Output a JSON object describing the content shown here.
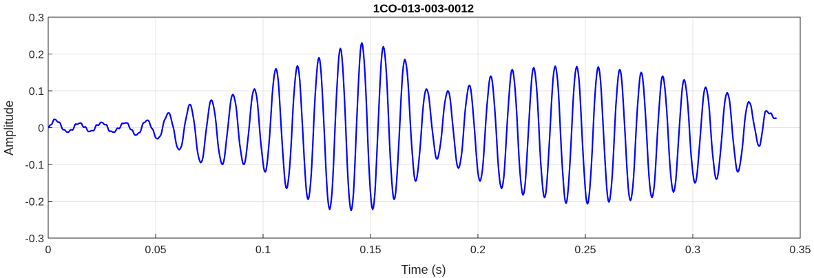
{
  "chart_data": {
    "type": "line",
    "title": "1CO-013-003-0012",
    "xlabel": "Time (s)",
    "ylabel": "Amplitude",
    "xlim": [
      0,
      0.35
    ],
    "ylim": [
      -0.3,
      0.3
    ],
    "grid": true,
    "x_ticks": [
      "0",
      "0.05",
      "0.1",
      "0.15",
      "0.2",
      "0.25",
      "0.3",
      "0.35"
    ],
    "y_ticks": [
      "0.3",
      "0.2",
      "0.1",
      "0",
      "-0.1",
      "-0.2",
      "-0.3"
    ],
    "line_color": "#0000ff",
    "series": [
      {
        "name": "",
        "description": "oscillating waveform",
        "x_start": 0,
        "x_end": 0.339,
        "peaks": [
          {
            "x": 0.003,
            "y": 0.022
          },
          {
            "x": 0.0145,
            "y": 0.012
          },
          {
            "x": 0.025,
            "y": 0.014
          },
          {
            "x": 0.036,
            "y": 0.013
          },
          {
            "x": 0.046,
            "y": 0.02
          },
          {
            "x": 0.056,
            "y": 0.04
          },
          {
            "x": 0.066,
            "y": 0.063
          },
          {
            "x": 0.076,
            "y": 0.075
          },
          {
            "x": 0.086,
            "y": 0.09
          },
          {
            "x": 0.096,
            "y": 0.105
          },
          {
            "x": 0.106,
            "y": 0.16
          },
          {
            "x": 0.116,
            "y": 0.168
          },
          {
            "x": 0.126,
            "y": 0.19
          },
          {
            "x": 0.136,
            "y": 0.215
          },
          {
            "x": 0.146,
            "y": 0.23
          },
          {
            "x": 0.156,
            "y": 0.22
          },
          {
            "x": 0.166,
            "y": 0.185
          },
          {
            "x": 0.176,
            "y": 0.105
          },
          {
            "x": 0.186,
            "y": 0.1
          },
          {
            "x": 0.196,
            "y": 0.115
          },
          {
            "x": 0.206,
            "y": 0.14
          },
          {
            "x": 0.216,
            "y": 0.158
          },
          {
            "x": 0.226,
            "y": 0.163
          },
          {
            "x": 0.236,
            "y": 0.167
          },
          {
            "x": 0.246,
            "y": 0.166
          },
          {
            "x": 0.256,
            "y": 0.165
          },
          {
            "x": 0.266,
            "y": 0.158
          },
          {
            "x": 0.276,
            "y": 0.15
          },
          {
            "x": 0.286,
            "y": 0.14
          },
          {
            "x": 0.296,
            "y": 0.13
          },
          {
            "x": 0.306,
            "y": 0.11
          },
          {
            "x": 0.316,
            "y": 0.095
          },
          {
            "x": 0.326,
            "y": 0.07
          },
          {
            "x": 0.334,
            "y": 0.045
          }
        ],
        "troughs": [
          {
            "x": 0.009,
            "y": -0.012
          },
          {
            "x": 0.0195,
            "y": -0.01
          },
          {
            "x": 0.03,
            "y": -0.012
          },
          {
            "x": 0.041,
            "y": -0.02
          },
          {
            "x": 0.051,
            "y": -0.03
          },
          {
            "x": 0.061,
            "y": -0.06
          },
          {
            "x": 0.071,
            "y": -0.095
          },
          {
            "x": 0.081,
            "y": -0.1
          },
          {
            "x": 0.091,
            "y": -0.1
          },
          {
            "x": 0.101,
            "y": -0.12
          },
          {
            "x": 0.111,
            "y": -0.165
          },
          {
            "x": 0.121,
            "y": -0.195
          },
          {
            "x": 0.131,
            "y": -0.222
          },
          {
            "x": 0.141,
            "y": -0.225
          },
          {
            "x": 0.151,
            "y": -0.222
          },
          {
            "x": 0.161,
            "y": -0.195
          },
          {
            "x": 0.171,
            "y": -0.145
          },
          {
            "x": 0.181,
            "y": -0.085
          },
          {
            "x": 0.191,
            "y": -0.11
          },
          {
            "x": 0.201,
            "y": -0.145
          },
          {
            "x": 0.211,
            "y": -0.165
          },
          {
            "x": 0.221,
            "y": -0.183
          },
          {
            "x": 0.231,
            "y": -0.19
          },
          {
            "x": 0.241,
            "y": -0.205
          },
          {
            "x": 0.251,
            "y": -0.207
          },
          {
            "x": 0.261,
            "y": -0.202
          },
          {
            "x": 0.271,
            "y": -0.198
          },
          {
            "x": 0.281,
            "y": -0.19
          },
          {
            "x": 0.291,
            "y": -0.175
          },
          {
            "x": 0.301,
            "y": -0.15
          },
          {
            "x": 0.311,
            "y": -0.14
          },
          {
            "x": 0.321,
            "y": -0.12
          },
          {
            "x": 0.331,
            "y": -0.05
          }
        ],
        "end_value": 0.025
      }
    ]
  }
}
